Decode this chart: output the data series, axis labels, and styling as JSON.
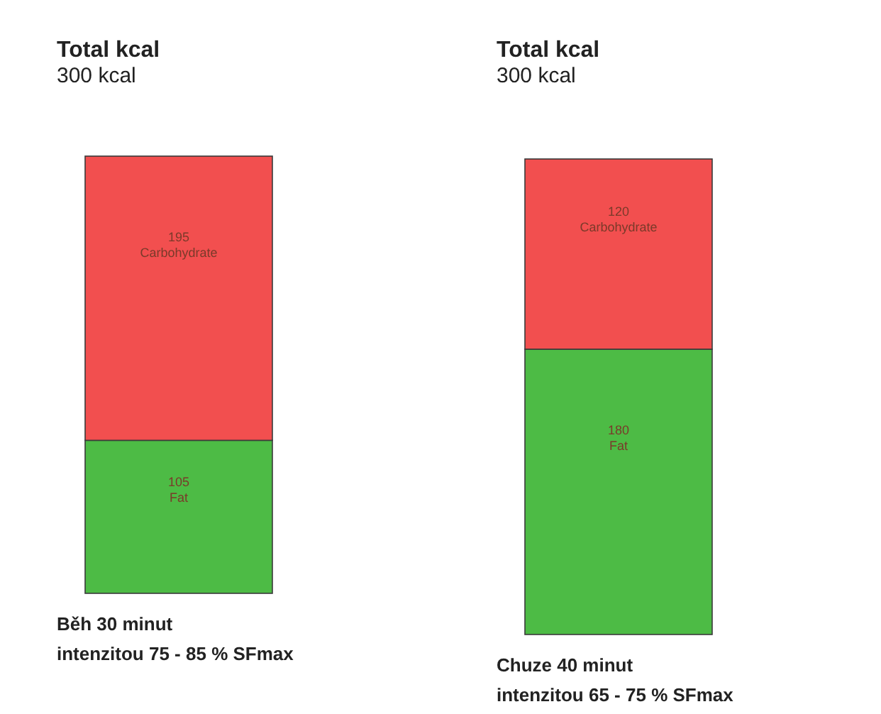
{
  "chart_data": [
    {
      "type": "bar",
      "title": "Total kcal",
      "subtitle": "300 kcal",
      "xlabel": "Běh 30 minut\nintenzitou 75 - 85 % SFmax",
      "categories": [
        null
      ],
      "stacked": true,
      "data_labels": true,
      "series": [
        {
          "name": "Fat",
          "color": "#4dbb45",
          "values": [
            105
          ]
        },
        {
          "name": "Carbohydrate",
          "color": "#f24f4f",
          "values": [
            195
          ]
        }
      ]
    },
    {
      "type": "bar",
      "title": "Total kcal",
      "subtitle": "300 kcal",
      "xlabel": "Chuze 40 minut\nintenzitou 65 - 75 % SFmax",
      "categories": [
        null
      ],
      "stacked": true,
      "data_labels": true,
      "series": [
        {
          "name": "Fat",
          "color": "#4dbb45",
          "values": [
            180
          ]
        },
        {
          "name": "Carbohydrate",
          "color": "#f24f4f",
          "values": [
            120
          ]
        }
      ]
    }
  ]
}
